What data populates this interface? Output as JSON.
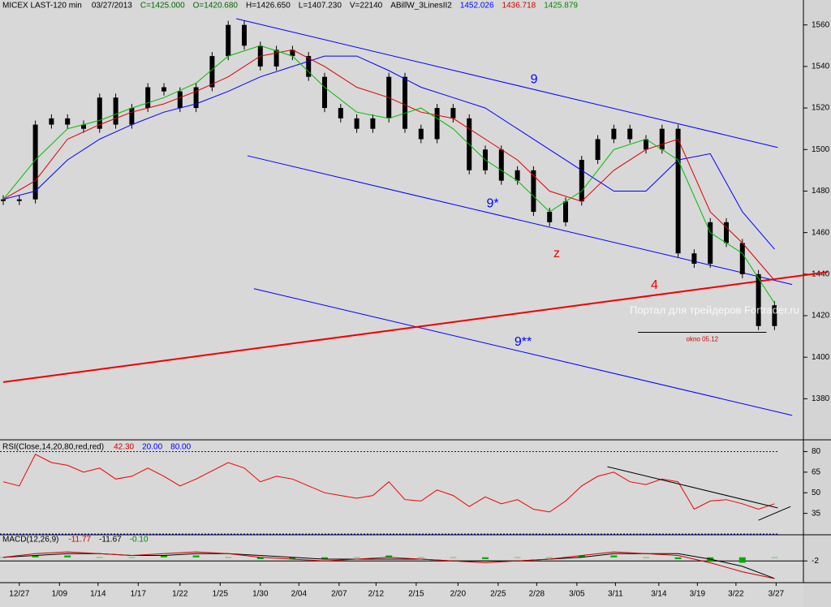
{
  "chart_data": [
    {
      "type": "candlestick",
      "title": "MICEX LAST-120 min",
      "header": [
        "03/27/2013",
        "C=1425.000",
        "O=1420.680",
        "H=1426.650",
        "L=1407.230",
        "V=22140",
        "ABillW_3LinesII2",
        "1452.026",
        "1436.718",
        "1425.879"
      ],
      "header_colors": [
        "#000000",
        "#006400",
        "#006400",
        "#000000",
        "#000000",
        "#000000",
        "#000000",
        "#0000ff",
        "#cc0000",
        "#008800"
      ],
      "close": [
        1476,
        1476,
        1512,
        1515,
        1512,
        1510,
        1525,
        1512,
        1520,
        1530,
        1528,
        1520,
        1530,
        1545,
        1560,
        1550,
        1540,
        1548,
        1545,
        1535,
        1520,
        1515,
        1510,
        1515,
        1535,
        1510,
        1505,
        1520,
        1515,
        1490,
        1500,
        1485,
        1490,
        1470,
        1465,
        1475,
        1495,
        1505,
        1510,
        1505,
        1500,
        1510,
        1450,
        1445,
        1465,
        1455,
        1440,
        1415,
        1425
      ],
      "candle_color": "#000000",
      "overlays": [
        {
          "color": "#0000ff",
          "values": [
            1476,
            1480,
            1495,
            1505,
            1512,
            1518,
            1522,
            1528,
            1535,
            1540,
            1545,
            1545,
            1538,
            1530,
            1525,
            1520,
            1510,
            1500,
            1490,
            1480,
            1480,
            1495,
            1498,
            1470,
            1452
          ]
        },
        {
          "color": "#dd0000",
          "values": [
            1476,
            1485,
            1505,
            1512,
            1518,
            1522,
            1528,
            1535,
            1545,
            1548,
            1540,
            1530,
            1525,
            1518,
            1515,
            1505,
            1495,
            1480,
            1475,
            1490,
            1500,
            1505,
            1470,
            1455,
            1437
          ]
        },
        {
          "color": "#00bb00",
          "values": [
            1476,
            1495,
            1510,
            1514,
            1520,
            1525,
            1532,
            1545,
            1550,
            1545,
            1530,
            1518,
            1515,
            1520,
            1510,
            1495,
            1485,
            1470,
            1480,
            1500,
            1505,
            1495,
            1460,
            1450,
            1426
          ]
        }
      ],
      "lines": [
        {
          "label": "9",
          "color": "#0000ff",
          "x": [
            14.5,
            48.2
          ],
          "y": [
            1563,
            1501
          ]
        },
        {
          "label": "9*",
          "color": "#0000ff",
          "x": [
            15.2,
            49.1
          ],
          "y": [
            1497,
            1435
          ]
        },
        {
          "label": "9**",
          "color": "#0000ff",
          "x": [
            15.6,
            49.1
          ],
          "y": [
            1433,
            1372
          ]
        },
        {
          "label": "4",
          "color": "#ee0000",
          "x": [
            0,
            51.3
          ],
          "y": [
            1388,
            1441
          ]
        }
      ],
      "annotation": "z",
      "annotation_color": "#ee0000",
      "level": {
        "label": "okno 05.12",
        "y": 1412,
        "x": [
          39.5,
          47.5
        ]
      },
      "watermark": "Портал для трейдеров Fortrader.ru",
      "ylim": [
        1361,
        1572
      ],
      "yticks": [
        1380,
        1400,
        1420,
        1440,
        1460,
        1480,
        1500,
        1520,
        1540,
        1560
      ],
      "xticks": [
        {
          "value": 1,
          "label": "12/27"
        },
        {
          "value": 3.5,
          "label": "1/09"
        },
        {
          "value": 5.9,
          "label": "1/14"
        },
        {
          "value": 8.4,
          "label": "1/17"
        },
        {
          "value": 11,
          "label": "1/22"
        },
        {
          "value": 13.5,
          "label": "1/25"
        },
        {
          "value": 16,
          "label": "1/30"
        },
        {
          "value": 18.4,
          "label": "2/04"
        },
        {
          "value": 20.9,
          "label": "2/07"
        },
        {
          "value": 23.2,
          "label": "2/12"
        },
        {
          "value": 25.7,
          "label": "2/15"
        },
        {
          "value": 28.3,
          "label": "2/20"
        },
        {
          "value": 30.8,
          "label": "2/25"
        },
        {
          "value": 33.2,
          "label": "2/28"
        },
        {
          "value": 35.7,
          "label": "3/05"
        },
        {
          "value": 38.1,
          "label": "3/11"
        },
        {
          "value": 40.8,
          "label": "3/14"
        },
        {
          "value": 43.2,
          "label": "3/19"
        },
        {
          "value": 45.6,
          "label": "3/22"
        },
        {
          "value": 48.1,
          "label": "3/27"
        }
      ]
    },
    {
      "type": "line",
      "title": "RSI(Close,14,20,80,red,red)",
      "header": [
        "42.30",
        "20.00",
        "80.00"
      ],
      "header_colors": [
        "#cc0000",
        "#0000ff",
        "#0000ff"
      ],
      "color": "#ee0000",
      "values": [
        58,
        55,
        78,
        72,
        70,
        65,
        68,
        60,
        62,
        68,
        62,
        55,
        60,
        66,
        72,
        68,
        58,
        62,
        60,
        55,
        50,
        48,
        46,
        48,
        58,
        45,
        44,
        52,
        48,
        40,
        47,
        42,
        45,
        38,
        36,
        44,
        55,
        62,
        65,
        58,
        56,
        60,
        58,
        38,
        44,
        45,
        42,
        38,
        42
      ],
      "levels": [
        20,
        80
      ],
      "level_color": "#0000ff",
      "lines": [
        {
          "x": [
            37.6,
            48.2
          ],
          "y": [
            69,
            39
          ]
        },
        {
          "x": [
            47,
            49
          ],
          "y": [
            30,
            40
          ]
        }
      ],
      "ylim": [
        20,
        85
      ],
      "yticks": [
        35,
        50,
        65,
        80
      ]
    },
    {
      "type": "macd",
      "title": "MACD(12,26,9)",
      "header": [
        "-11.77",
        "-11.67",
        "-0.10"
      ],
      "header_colors": [
        "#cc0000",
        "#000000",
        "#008800"
      ],
      "macd": [
        0,
        2,
        3,
        2,
        1,
        2,
        3,
        2,
        0,
        -1,
        -2,
        -1,
        0,
        -1,
        -2,
        -3,
        -2,
        -1,
        1,
        3,
        2,
        1,
        -3,
        -8,
        -11.77
      ],
      "signal": [
        0,
        1,
        2,
        2,
        1,
        1,
        2,
        2,
        1,
        0,
        -1,
        -1,
        -1,
        -1,
        -2,
        -2,
        -2,
        -1,
        0,
        2,
        2,
        2,
        -1,
        -5,
        -11.67
      ],
      "histogram": [
        0,
        1,
        1,
        0,
        0,
        1,
        1,
        0,
        -1,
        -1,
        -1,
        0,
        1,
        0,
        0,
        -1,
        0,
        0,
        1,
        1,
        0,
        -1,
        -2,
        -3,
        -0.1
      ],
      "colors": [
        "#cc0000",
        "#000000",
        "#00aa00"
      ],
      "ylim": [
        -14,
        12
      ],
      "yticks": [
        -2
      ]
    }
  ]
}
